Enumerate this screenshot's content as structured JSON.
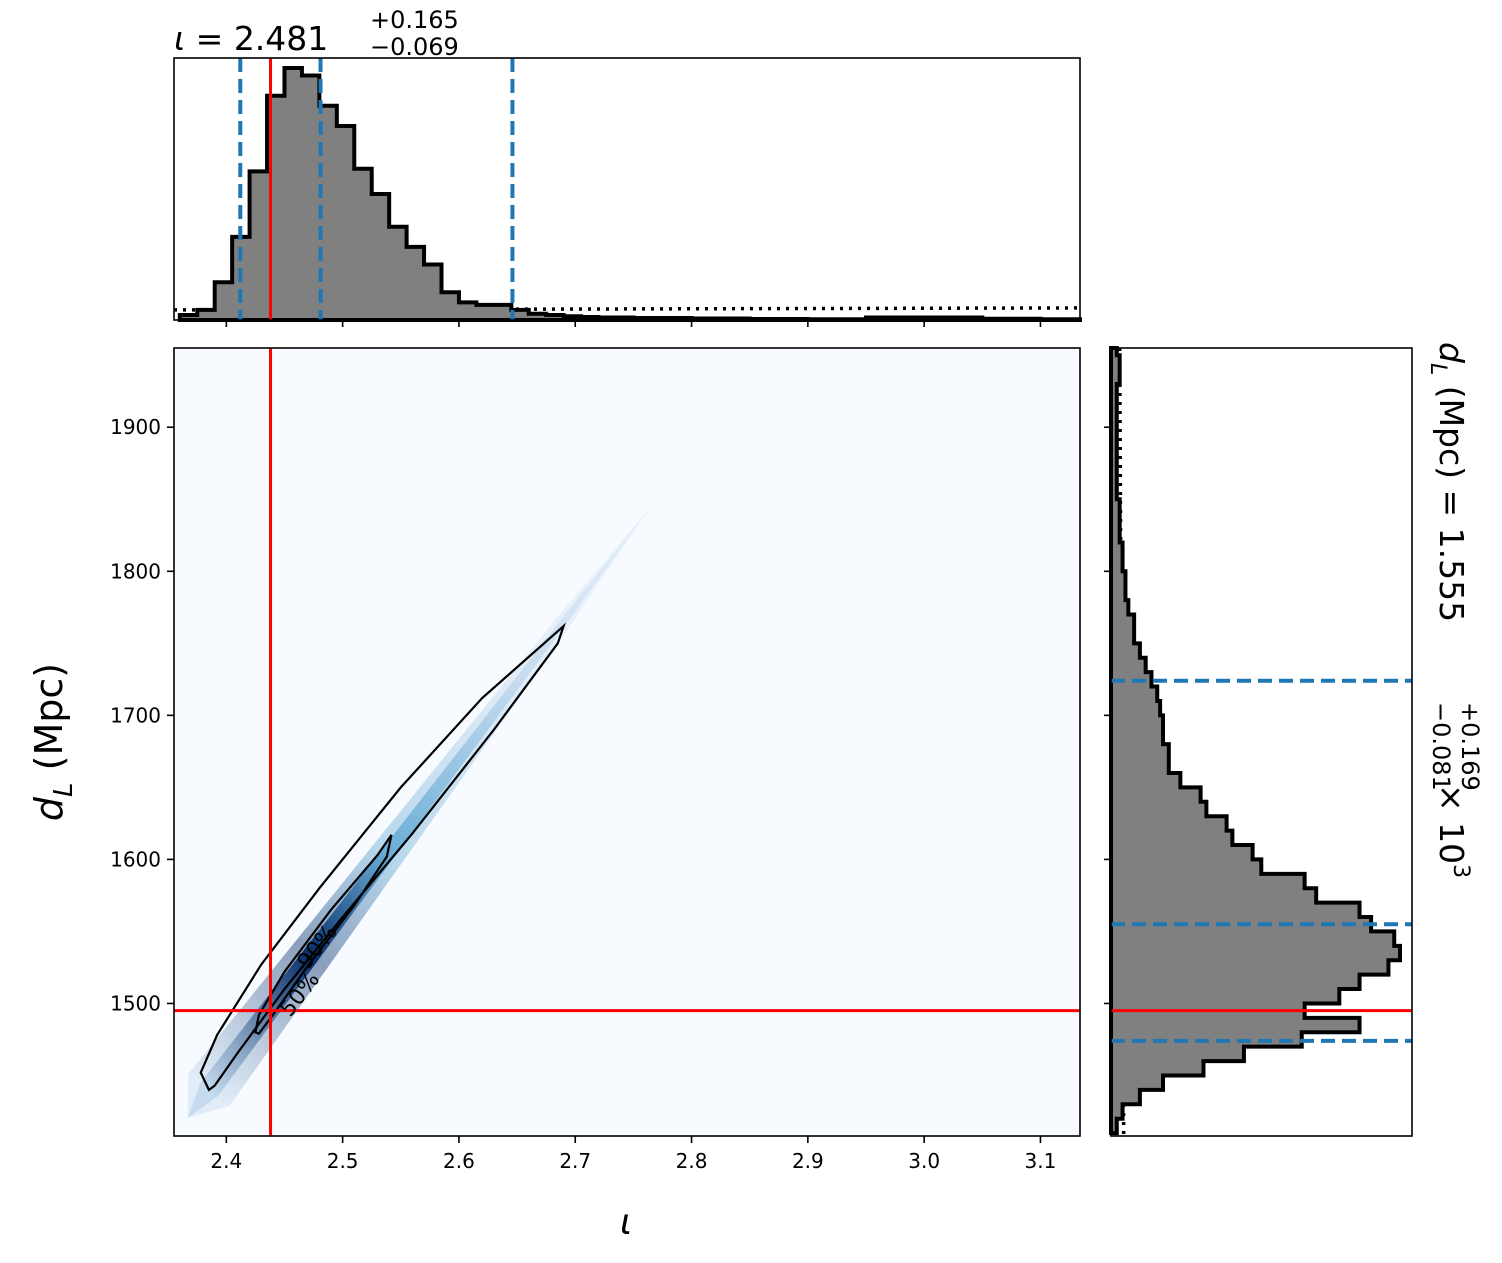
{
  "colors": {
    "hist_fill": "#808080",
    "hist_edge": "#000000",
    "quantile_line": "#1f77b4",
    "truth_line": "#ff0000",
    "density_low": "#f7fbff",
    "density_high": "#08306b",
    "contour": "#000000"
  },
  "chart_data": {
    "type": "corner",
    "truth": {
      "iota": 2.438,
      "dL": 1495
    },
    "marginals": {
      "iota": {
        "title_value": "2.481",
        "title_upper": "+0.165",
        "title_lower": "−0.069",
        "title_param": "ι",
        "title_eq": " = ",
        "quantiles": [
          2.412,
          2.481,
          2.646
        ],
        "edges": [
          2.36,
          2.375,
          2.39,
          2.405,
          2.42,
          2.435,
          2.45,
          2.465,
          2.48,
          2.495,
          2.51,
          2.525,
          2.54,
          2.555,
          2.57,
          2.585,
          2.6,
          2.615,
          2.63,
          2.645,
          2.66,
          2.675,
          2.69,
          2.705,
          2.72,
          2.735,
          2.75,
          2.8,
          2.85,
          2.9,
          2.95,
          3.0,
          3.05,
          3.1,
          3.134
        ],
        "density": [
          0.02,
          0.04,
          0.15,
          0.33,
          0.59,
          0.89,
          1.0,
          0.97,
          0.85,
          0.77,
          0.6,
          0.5,
          0.37,
          0.29,
          0.22,
          0.11,
          0.07,
          0.06,
          0.06,
          0.04,
          0.025,
          0.02,
          0.015,
          0.012,
          0.01,
          0.01,
          0.008,
          0.006,
          0.004,
          0.003,
          0.01,
          0.01,
          0.005,
          0.003
        ],
        "prior": 0.04,
        "xlim": [
          2.355,
          3.134
        ]
      },
      "dL": {
        "title_param": "d",
        "title_sub": "L",
        "title_unit": " (Mpc) = 1.555",
        "title_upper": "+0.169",
        "title_lower": "−0.081",
        "title_exp_base": " × 10",
        "title_exp": "3",
        "quantiles": [
          1474,
          1555,
          1724
        ],
        "edges": [
          1410,
          1420,
          1430,
          1440,
          1450,
          1460,
          1470,
          1480,
          1490,
          1500,
          1510,
          1520,
          1530,
          1540,
          1550,
          1560,
          1570,
          1580,
          1590,
          1600,
          1610,
          1620,
          1630,
          1640,
          1650,
          1660,
          1670,
          1680,
          1690,
          1700,
          1710,
          1720,
          1730,
          1740,
          1750,
          1760,
          1770,
          1780,
          1790,
          1800,
          1810,
          1820,
          1830,
          1840,
          1850,
          1860,
          1870,
          1880,
          1890,
          1900,
          1910,
          1920,
          1930,
          1940,
          1950,
          1955
        ],
        "density": [
          0.02,
          0.04,
          0.1,
          0.18,
          0.32,
          0.46,
          0.66,
          0.86,
          0.67,
          0.79,
          0.86,
          0.96,
          1.0,
          0.98,
          0.9,
          0.86,
          0.71,
          0.67,
          0.52,
          0.49,
          0.42,
          0.4,
          0.33,
          0.31,
          0.24,
          0.2,
          0.2,
          0.18,
          0.18,
          0.17,
          0.16,
          0.14,
          0.12,
          0.1,
          0.08,
          0.08,
          0.06,
          0.05,
          0.05,
          0.04,
          0.04,
          0.03,
          0.03,
          0.03,
          0.02,
          0.02,
          0.02,
          0.02,
          0.02,
          0.02,
          0.02,
          0.02,
          0.03,
          0.03,
          0.02
        ],
        "prior": 0.03,
        "ylim": [
          1408,
          1955
        ]
      }
    },
    "joint": {
      "xlabel_symbol": "ι",
      "ylabel_symbol": "d",
      "ylabel_sub": "L",
      "ylabel_unit": " (Mpc)",
      "xlim": [
        2.355,
        3.134
      ],
      "ylim": [
        1408,
        1955
      ],
      "xticks": [
        2.4,
        2.5,
        2.6,
        2.7,
        2.8,
        2.9,
        3.0,
        3.1
      ],
      "xtick_labels": [
        "2.4",
        "2.5",
        "2.6",
        "2.7",
        "2.8",
        "2.9",
        "3.0",
        "3.1"
      ],
      "yticks": [
        1500,
        1600,
        1700,
        1800,
        1900
      ],
      "ytick_labels": [
        "1500",
        "1600",
        "1700",
        "1800",
        "1900"
      ],
      "ridge": {
        "x0": 2.385,
        "y0": 1440,
        "x1": 2.69,
        "y1": 1765,
        "peak_x": 2.46,
        "peak_y": 1525
      },
      "contours": [
        {
          "level": "90%",
          "label": "90%",
          "points": [
            [
              2.385,
              1440
            ],
            [
              2.378,
              1452
            ],
            [
              2.392,
              1478
            ],
            [
              2.43,
              1527
            ],
            [
              2.48,
              1580
            ],
            [
              2.55,
              1650
            ],
            [
              2.62,
              1712
            ],
            [
              2.69,
              1762
            ],
            [
              2.685,
              1750
            ],
            [
              2.63,
              1690
            ],
            [
              2.56,
              1618
            ],
            [
              2.5,
              1560
            ],
            [
              2.45,
              1510
            ],
            [
              2.41,
              1466
            ],
            [
              2.39,
              1443
            ]
          ]
        },
        {
          "level": "50%",
          "label": "50%",
          "points": [
            [
              2.425,
              1480
            ],
            [
              2.428,
              1492
            ],
            [
              2.45,
              1522
            ],
            [
              2.49,
              1565
            ],
            [
              2.53,
              1603
            ],
            [
              2.542,
              1617
            ],
            [
              2.538,
              1602
            ],
            [
              2.51,
              1568
            ],
            [
              2.47,
              1526
            ],
            [
              2.44,
              1492
            ],
            [
              2.428,
              1479
            ]
          ]
        }
      ],
      "contour_labels": [
        "50%",
        "90%"
      ]
    }
  }
}
